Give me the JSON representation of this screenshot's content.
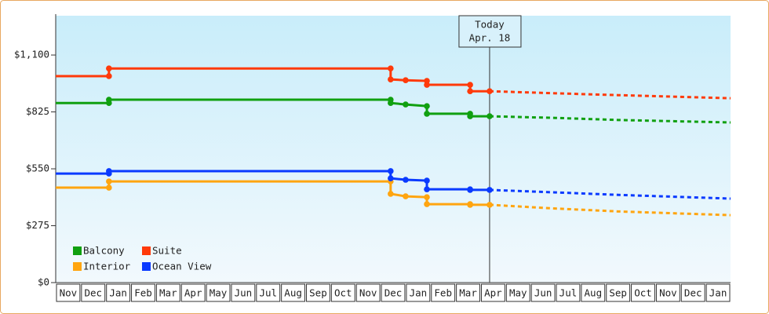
{
  "chart_data": {
    "type": "line",
    "ylim": [
      0,
      1290
    ],
    "yticks": [
      {
        "value": 0,
        "label": "$0"
      },
      {
        "value": 275,
        "label": "$275"
      },
      {
        "value": 550,
        "label": "$550"
      },
      {
        "value": 825,
        "label": "$825"
      },
      {
        "value": 1100,
        "label": "$1,100"
      }
    ],
    "xlim": [
      0,
      27
    ],
    "categories": [
      "Nov",
      "Dec",
      "Jan",
      "Feb",
      "Mar",
      "Apr",
      "May",
      "Jun",
      "Jul",
      "Aug",
      "Sep",
      "Oct",
      "Nov",
      "Dec",
      "Jan",
      "Feb",
      "Mar",
      "Apr",
      "May",
      "Jun",
      "Jul",
      "Aug",
      "Sep",
      "Oct",
      "Nov",
      "Dec",
      "Jan"
    ],
    "x": [
      0,
      2.13,
      2.13,
      13.4,
      13.4,
      14.0,
      14.85,
      14.85,
      16.58,
      16.58,
      17.36
    ],
    "forecast_x": [
      17.36,
      20,
      22.5,
      27
    ],
    "series": [
      {
        "name": "Balcony",
        "color": "#10a010",
        "values": [
          868,
          868,
          884,
          884,
          868,
          861,
          853,
          816,
          816,
          804,
          804
        ],
        "forecast": [
          804,
          796,
          786,
          774
        ]
      },
      {
        "name": "Suite",
        "color": "#ff3a0a",
        "values": [
          998,
          998,
          1035,
          1035,
          982,
          978,
          975,
          956,
          956,
          925,
          925
        ],
        "forecast": [
          925,
          915,
          906,
          891
        ]
      },
      {
        "name": "Interior",
        "color": "#ffa510",
        "values": [
          459,
          459,
          489,
          489,
          429,
          417,
          413,
          379,
          379,
          376,
          376
        ],
        "forecast": [
          376,
          358,
          344,
          326
        ]
      },
      {
        "name": "Ocean View",
        "color": "#0a3aff",
        "values": [
          527,
          527,
          539,
          539,
          504,
          497,
          493,
          451,
          451,
          448,
          448
        ],
        "forecast": [
          448,
          436,
          424,
          406
        ]
      }
    ],
    "today": {
      "x": 17.36,
      "label": [
        "Today",
        "Apr. 18"
      ]
    }
  }
}
